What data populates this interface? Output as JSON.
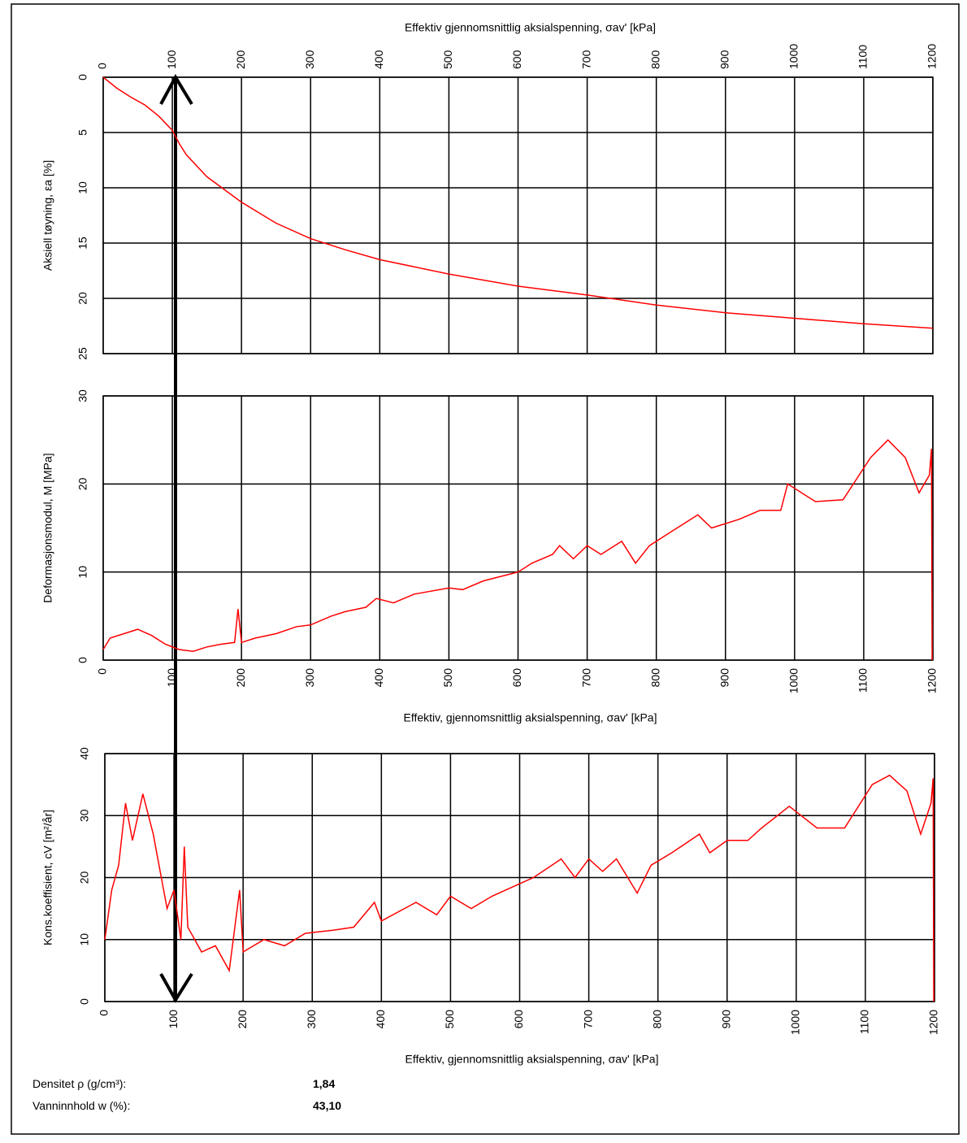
{
  "chart_data": [
    {
      "type": "line",
      "x_label": "Effektiv gjennomsnittlig aksialspenning, σav' [kPa]",
      "x_axis": "top",
      "y_label": "Aksiell tøyning, εa [%]",
      "color": "#ff0000",
      "grid": true,
      "xlim": [
        0,
        1200
      ],
      "xticks": [
        0,
        100,
        200,
        300,
        400,
        500,
        600,
        700,
        800,
        900,
        1000,
        1100,
        1200
      ],
      "ylim": [
        25,
        0
      ],
      "yticks": [
        0,
        5,
        10,
        15,
        20,
        25
      ],
      "x": [
        0,
        20,
        40,
        60,
        80,
        100,
        110,
        120,
        150,
        200,
        250,
        300,
        350,
        400,
        500,
        600,
        700,
        800,
        900,
        1000,
        1100,
        1200
      ],
      "values": [
        0,
        1,
        1.8,
        2.5,
        3.5,
        4.8,
        6,
        7,
        9,
        11.3,
        13.2,
        14.6,
        15.6,
        16.5,
        17.8,
        18.9,
        19.7,
        20.6,
        21.3,
        21.8,
        22.3,
        22.7
      ]
    },
    {
      "type": "line",
      "x_label": "Effektiv, gjennomsnittlig aksialspenning, σav' [kPa]",
      "x_axis": "bottom",
      "y_label": "Deformasjonsmodul, M [MPa]",
      "color": "#ff0000",
      "grid": true,
      "xlim": [
        0,
        1200
      ],
      "xticks": [
        0,
        100,
        200,
        300,
        400,
        500,
        600,
        700,
        800,
        900,
        1000,
        1100,
        1200
      ],
      "ylim": [
        0,
        30
      ],
      "yticks": [
        0,
        10,
        20,
        30
      ],
      "x": [
        0,
        10,
        30,
        50,
        70,
        90,
        110,
        130,
        150,
        170,
        190,
        195,
        200,
        220,
        250,
        280,
        300,
        330,
        350,
        380,
        395,
        420,
        450,
        500,
        520,
        550,
        600,
        620,
        650,
        660,
        680,
        700,
        720,
        750,
        770,
        790,
        820,
        860,
        880,
        920,
        950,
        980,
        990,
        1030,
        1070,
        1110,
        1135,
        1160,
        1180,
        1195,
        1198,
        1199
      ],
      "values": [
        1.2,
        2.5,
        3,
        3.5,
        2.8,
        1.8,
        1.2,
        1,
        1.5,
        1.8,
        2,
        5.8,
        2,
        2.5,
        3,
        3.8,
        4,
        5,
        5.5,
        6,
        7,
        6.5,
        7.5,
        8.2,
        8,
        9,
        10,
        11,
        12,
        13,
        11.5,
        13,
        12,
        13.5,
        11,
        13,
        14.5,
        16.5,
        15,
        16,
        17,
        17,
        20,
        18,
        18.2,
        23,
        25,
        23,
        19,
        21,
        24,
        0
      ]
    },
    {
      "type": "line",
      "x_label": "Effektiv, gjennomsnittlig aksialspenning, σav' [kPa]",
      "x_axis": "bottom",
      "y_label": "Kons.koeffisient, cV [m²/år]",
      "color": "#ff0000",
      "grid": true,
      "xlim": [
        0,
        1200
      ],
      "xticks": [
        0,
        100,
        200,
        300,
        400,
        500,
        600,
        700,
        800,
        900,
        1000,
        1100,
        1200
      ],
      "ylim": [
        0,
        40
      ],
      "yticks": [
        0,
        10,
        20,
        30,
        40
      ],
      "x": [
        0,
        10,
        20,
        30,
        40,
        55,
        70,
        90,
        100,
        110,
        115,
        120,
        140,
        160,
        180,
        195,
        200,
        230,
        260,
        290,
        330,
        360,
        390,
        400,
        450,
        480,
        500,
        530,
        560,
        600,
        620,
        660,
        680,
        700,
        720,
        740,
        770,
        790,
        820,
        860,
        875,
        900,
        930,
        950,
        990,
        1030,
        1070,
        1110,
        1135,
        1160,
        1180,
        1195,
        1198,
        1199
      ],
      "values": [
        10,
        18,
        22,
        32,
        26,
        33.5,
        27,
        15,
        18,
        10,
        25,
        12,
        8,
        9,
        5,
        18,
        8,
        10,
        9,
        11,
        11.5,
        12,
        16,
        13,
        16,
        14,
        17,
        15,
        17,
        19,
        20,
        23,
        20,
        23,
        21,
        23,
        17.5,
        22,
        24,
        27,
        24,
        26,
        26,
        28,
        31.5,
        28,
        28,
        35,
        36.5,
        34,
        27,
        32,
        36,
        0
      ]
    }
  ],
  "info": [
    {
      "label": "Densitet ρ (g/cm³):",
      "value": "1,84"
    },
    {
      "label": "Vanninnhold w (%):",
      "value": "43,10"
    }
  ]
}
